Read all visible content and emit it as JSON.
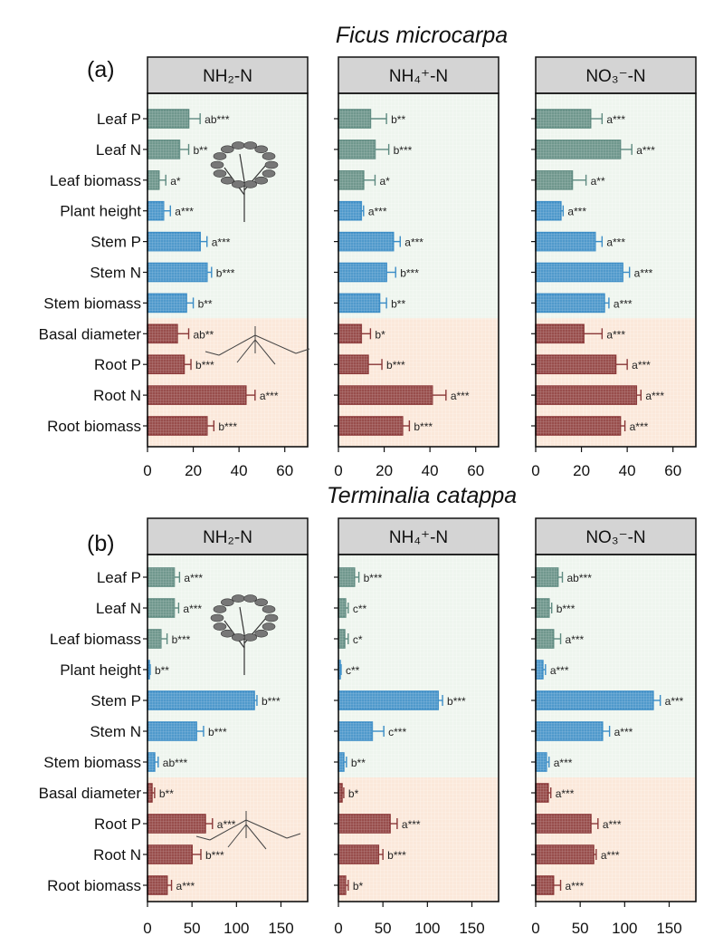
{
  "colors": {
    "leaf": "#5e8a80",
    "stem": "#3a8cc6",
    "root": "#8a3838",
    "leaf_stem_bg": "#eef5ee",
    "root_bg": "#fbe8da",
    "header_bg": "#d4d4d4"
  },
  "icons": {
    "panel_a": [
      "tree-illustration",
      "roots-illustration"
    ],
    "panel_b": [
      "tree-illustration",
      "roots-illustration"
    ]
  },
  "chart_data": [
    {
      "type": "bar",
      "orientation": "horizontal",
      "panel_label": "(a)",
      "title": "Ficus microcarpa",
      "facets": [
        "NH₂-N",
        "NH₄⁺-N",
        "NO₃⁻-N"
      ],
      "categories": [
        "Leaf P",
        "Leaf N",
        "Leaf biomass",
        "Plant height",
        "Stem P",
        "Stem N",
        "Stem biomass",
        "Basal diameter",
        "Root P",
        "Root N",
        "Root biomass"
      ],
      "groups": [
        "leaf",
        "leaf",
        "leaf",
        "stem",
        "stem",
        "stem",
        "stem",
        "root",
        "root",
        "root",
        "root"
      ],
      "xlim": [
        0,
        70
      ],
      "xticks": [
        "0",
        "20",
        "40",
        "60"
      ],
      "grid": false,
      "series": [
        {
          "values": [
            18,
            14,
            5,
            7,
            23,
            26,
            17,
            13,
            16,
            43,
            26
          ],
          "errors": [
            5,
            4,
            3,
            3,
            3,
            2,
            3,
            5,
            3,
            4,
            3
          ],
          "labels": [
            "ab***",
            "b**",
            "a*",
            "a***",
            "a***",
            "b***",
            "b**",
            "ab**",
            "b***",
            "a***",
            "b***"
          ]
        },
        {
          "values": [
            14,
            16,
            11,
            10,
            24,
            21,
            18,
            10,
            13,
            41,
            28
          ],
          "errors": [
            7,
            6,
            5,
            1,
            3,
            4,
            3,
            4,
            6,
            6,
            3
          ],
          "labels": [
            "b**",
            "b***",
            "a*",
            "a***",
            "a***",
            "b***",
            "b**",
            "b*",
            "b***",
            "a***",
            "b***"
          ]
        },
        {
          "values": [
            24,
            37,
            16,
            11,
            26,
            38,
            30,
            21,
            35,
            44,
            37
          ],
          "errors": [
            5,
            5,
            6,
            1,
            3,
            3,
            2,
            8,
            5,
            2,
            2
          ],
          "labels": [
            "a***",
            "a***",
            "a**",
            "a***",
            "a***",
            "a***",
            "a***",
            "a***",
            "a***",
            "a***",
            "a***"
          ]
        }
      ]
    },
    {
      "type": "bar",
      "orientation": "horizontal",
      "panel_label": "(b)",
      "title": "Terminalia catappa",
      "facets": [
        "NH₂-N",
        "NH₄⁺-N",
        "NO₃⁻-N"
      ],
      "categories": [
        "Leaf P",
        "Leaf N",
        "Leaf biomass",
        "Plant height",
        "Stem P",
        "Stem N",
        "Stem biomass",
        "Basal diameter",
        "Root P",
        "Root N",
        "Root biomass"
      ],
      "groups": [
        "leaf",
        "leaf",
        "leaf",
        "stem",
        "stem",
        "stem",
        "stem",
        "root",
        "root",
        "root",
        "root"
      ],
      "xlim": [
        0,
        180
      ],
      "xticks": [
        "0",
        "50",
        "100",
        "150"
      ],
      "grid": false,
      "series": [
        {
          "values": [
            30,
            30,
            15,
            2,
            120,
            55,
            8,
            5,
            65,
            50,
            22
          ],
          "errors": [
            6,
            5,
            7,
            1,
            3,
            8,
            4,
            3,
            8,
            10,
            5
          ],
          "labels": [
            "a***",
            "a***",
            "b***",
            "b**",
            "b***",
            "b***",
            "ab***",
            "b**",
            "a***",
            "b***",
            "a***"
          ]
        },
        {
          "values": [
            18,
            8,
            7,
            2,
            112,
            38,
            6,
            4,
            58,
            45,
            8
          ],
          "errors": [
            5,
            3,
            4,
            1,
            5,
            13,
            3,
            2,
            8,
            5,
            3
          ],
          "labels": [
            "b***",
            "c**",
            "c*",
            "c**",
            "b***",
            "c***",
            "b**",
            "b*",
            "a***",
            "b***",
            "b*"
          ]
        },
        {
          "values": [
            25,
            15,
            20,
            8,
            132,
            75,
            12,
            14,
            62,
            65,
            20
          ],
          "errors": [
            5,
            3,
            8,
            3,
            8,
            8,
            3,
            3,
            8,
            3,
            8
          ],
          "labels": [
            "ab***",
            "b***",
            "a***",
            "a***",
            "a***",
            "a***",
            "a***",
            "a***",
            "a***",
            "a***",
            "a***"
          ]
        }
      ]
    }
  ]
}
